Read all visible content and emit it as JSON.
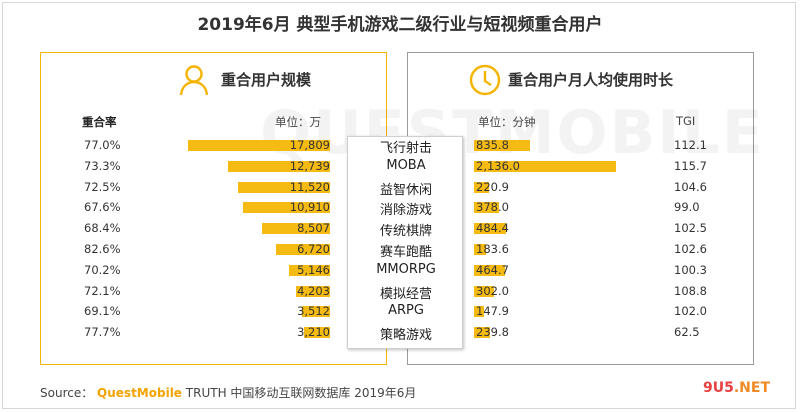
{
  "title": "2019年6月 典型手机游戏二级行业与短视频重合用户",
  "watermark": "QUESTMOBILE",
  "left_panel": {
    "title": "重合用户规模",
    "rate_header": "重合率",
    "unit": "单位：万"
  },
  "right_panel": {
    "title": "重合用户月人均使用时长",
    "unit": "单位：分钟",
    "tgi_header": "TGI"
  },
  "chart_data": {
    "type": "bar",
    "categories": [
      "飞行射击",
      "MOBA",
      "益智休闲",
      "消除游戏",
      "传统棋牌",
      "赛车跑酷",
      "MMORPG",
      "模拟经营",
      "ARPG",
      "策略游戏"
    ],
    "overlap_rate": [
      "77.0%",
      "73.3%",
      "72.5%",
      "67.6%",
      "68.4%",
      "82.6%",
      "70.2%",
      "72.1%",
      "69.1%",
      "77.7%"
    ],
    "overlap_users": [
      17809,
      12739,
      11520,
      10910,
      8507,
      6720,
      5146,
      4203,
      3512,
      3210
    ],
    "overlap_users_labels": [
      "17,809",
      "12,739",
      "11,520",
      "10,910",
      "8,507",
      "6,720",
      "5,146",
      "4,203",
      "3,512",
      "3,210"
    ],
    "monthly_minutes": [
      835.8,
      2136.0,
      220.9,
      378.0,
      484.4,
      183.6,
      464.7,
      302.0,
      147.9,
      239.8
    ],
    "monthly_minutes_labels": [
      "835.8",
      "2,136.0",
      "220.9",
      "378.0",
      "484.4",
      "183.6",
      "464.7",
      "302.0",
      "147.9",
      "239.8"
    ],
    "tgi": [
      "112.1",
      "115.7",
      "104.6",
      "99.0",
      "102.5",
      "102.6",
      "100.3",
      "108.8",
      "102.0",
      "62.5"
    ],
    "bar_color": "#f6bb12"
  },
  "source": {
    "prefix": "Source：",
    "brand": "QuestMobile",
    "rest": "TRUTH 中国移动互联网数据库 2019年6月"
  },
  "site_logo": {
    "part1": "9U5",
    "part2": ".NET"
  },
  "colors": {
    "accent": "#f4b400",
    "bar": "#f6bb12",
    "border_right": "#9a9a9a"
  }
}
